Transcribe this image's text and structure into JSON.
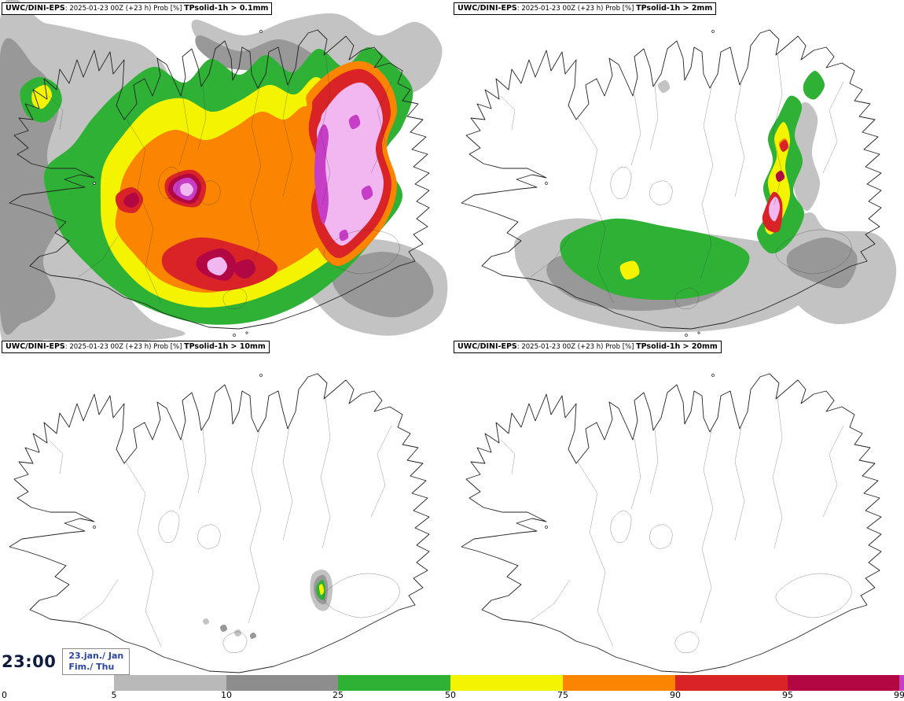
{
  "panels": [
    {
      "model": "UWC/DINI-EPS",
      "run_info": ": 2025-01-23 00Z (+23 h) Prob [%] ",
      "threshold": "TPsolid-1h > 0.1mm"
    },
    {
      "model": "UWC/DINI-EPS",
      "run_info": ": 2025-01-23 00Z (+23 h) Prob [%] ",
      "threshold": "TPsolid-1h > 2mm"
    },
    {
      "model": "UWC/DINI-EPS",
      "run_info": ": 2025-01-23 00Z (+23 h) Prob [%] ",
      "threshold": "TPsolid-1h > 10mm"
    },
    {
      "model": "UWC/DINI-EPS",
      "run_info": ": 2025-01-23 00Z (+23 h) Prob [%] ",
      "threshold": "TPsolid-1h > 20mm"
    }
  ],
  "clock": {
    "time": "23:00",
    "date_line1": "23.jan./ Jan",
    "date_line2": "Fim./ Thu"
  },
  "colorbar": {
    "tick_labels": [
      "0",
      "5",
      "10",
      "25",
      "50",
      "75",
      "90",
      "95",
      "99"
    ],
    "segments": [
      {
        "range": "5-10",
        "color": "#b9b9b9"
      },
      {
        "range": "10-25",
        "color": "#8d8d8d"
      },
      {
        "range": "25-50",
        "color": "#2fb136"
      },
      {
        "range": "50-75",
        "color": "#f4f400"
      },
      {
        "range": "75-90",
        "color": "#fb8500"
      },
      {
        "range": "90-95",
        "color": "#d92327"
      },
      {
        "range": "95-99",
        "color": "#b30744"
      },
      {
        "range": "99+",
        "color": "#c53ec5"
      }
    ]
  },
  "palette": {
    "lightgray": "#c3c3c3",
    "gray": "#989898",
    "green": "#2fb136",
    "yellow": "#f4f400",
    "orange": "#fb8500",
    "red": "#d92327",
    "carmine": "#b30744",
    "magenta": "#c53ec5",
    "pink": "#f2b7f0",
    "coast": "#222222"
  }
}
